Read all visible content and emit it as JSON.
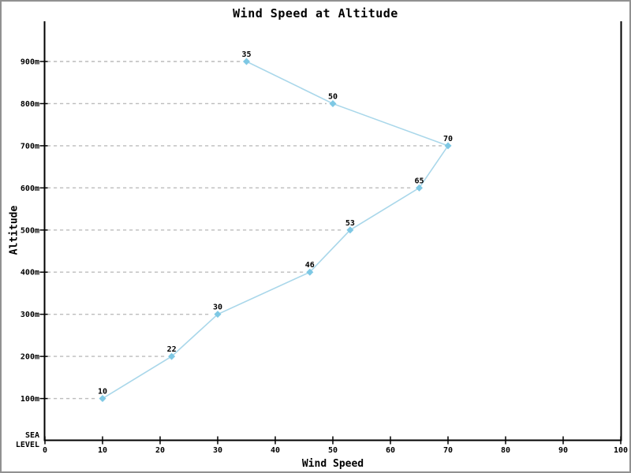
{
  "chart_data": {
    "type": "line",
    "title": "Wind Speed at Altitude",
    "xlabel": "Wind Speed",
    "ylabel": "Altitude",
    "xlim": [
      0,
      100
    ],
    "x_ticks": [
      0,
      10,
      20,
      30,
      40,
      50,
      60,
      70,
      80,
      90,
      100
    ],
    "ylim_m": [
      0,
      900
    ],
    "baseline_label_lines": [
      "SEA",
      "LEVEL"
    ],
    "grid": "dashed horizontal line from y-axis to each data point",
    "legend": null,
    "marker": "diamond",
    "rows": [
      {
        "altitude_m": 100,
        "altitude_label": "100m",
        "wind_speed": 10
      },
      {
        "altitude_m": 200,
        "altitude_label": "200m",
        "wind_speed": 22
      },
      {
        "altitude_m": 300,
        "altitude_label": "300m",
        "wind_speed": 30
      },
      {
        "altitude_m": 400,
        "altitude_label": "400m",
        "wind_speed": 46
      },
      {
        "altitude_m": 500,
        "altitude_label": "500m",
        "wind_speed": 53
      },
      {
        "altitude_m": 600,
        "altitude_label": "600m",
        "wind_speed": 65
      },
      {
        "altitude_m": 700,
        "altitude_label": "700m",
        "wind_speed": 70
      },
      {
        "altitude_m": 800,
        "altitude_label": "800m",
        "wind_speed": 50
      },
      {
        "altitude_m": 900,
        "altitude_label": "900m",
        "wind_speed": 35
      }
    ],
    "colors": {
      "line": "#a9d7ea",
      "marker": "#7ec8e4",
      "grid": "#bcbcbc",
      "axis": "#000000",
      "text": "#000000",
      "canvas_border": "#919191",
      "background": "#ffffff"
    }
  }
}
